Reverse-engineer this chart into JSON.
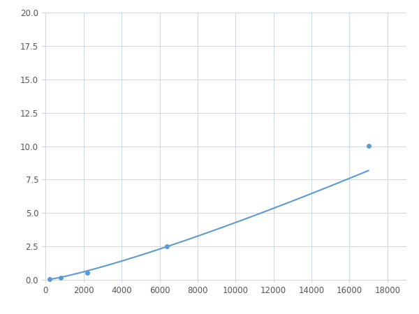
{
  "x": [
    200,
    800,
    2200,
    6400,
    17000
  ],
  "y": [
    0.05,
    0.15,
    0.55,
    2.5,
    10.05
  ],
  "line_color": "#5b9bd5",
  "marker_color": "#5b9bd5",
  "marker_size": 5,
  "line_width": 1.5,
  "xlim": [
    -200,
    19000
  ],
  "ylim": [
    -0.2,
    20.0
  ],
  "xticks": [
    0,
    2000,
    4000,
    6000,
    8000,
    10000,
    12000,
    14000,
    16000,
    18000
  ],
  "yticks": [
    0.0,
    2.5,
    5.0,
    7.5,
    10.0,
    12.5,
    15.0,
    17.5,
    20.0
  ],
  "grid_color": "#d0d8e4",
  "bg_color": "#ffffff",
  "figsize": [
    6.0,
    4.5
  ],
  "dpi": 100,
  "tick_fontsize": 8.5
}
